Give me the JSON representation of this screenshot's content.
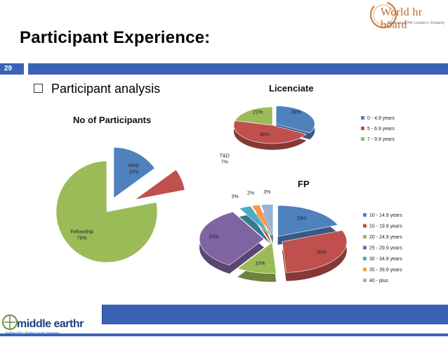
{
  "slide": {
    "title": "Participant Experience:",
    "page_number": "29",
    "bullet": "Participant analysis"
  },
  "logos": {
    "world_hr": "World hr board",
    "world_hr_tag": "Delivering HR Leaders Globally",
    "middle_earth": "middle earthr",
    "middle_earth_tag": "Building HRM - Building Human Happiness"
  },
  "colors": {
    "blue": "#4f81bd",
    "red": "#c0504d",
    "green": "#9bbb59",
    "purple": "#8064a2",
    "teal": "#4bacc6",
    "orange": "#f79646",
    "lightblue": "#95b3d7",
    "accent_bar": "#3a63b5"
  },
  "chart_data": [
    {
      "type": "pie",
      "title": "No of Participants",
      "slices": [
        {
          "label": "HRG",
          "value": 15,
          "text": "15%",
          "color": "#4f81bd"
        },
        {
          "label": "T&D",
          "value": 7,
          "text": "7%",
          "color": "#c0504d"
        },
        {
          "label": "Fellowship",
          "value": 78,
          "text": "78%",
          "color": "#9bbb59"
        }
      ]
    },
    {
      "type": "pie",
      "title": "Licenciate",
      "legend_position": "right",
      "slices": [
        {
          "label": "0 - 4.9 years",
          "value": 33,
          "text": "33%",
          "color": "#4f81bd"
        },
        {
          "label": "5 - 6.9 years",
          "value": 46,
          "text": "46%",
          "color": "#c0504d"
        },
        {
          "label": "7 - 9.9 years",
          "value": 21,
          "text": "21%",
          "color": "#9bbb59"
        }
      ]
    },
    {
      "type": "pie",
      "title": "FP",
      "legend_position": "right",
      "slices": [
        {
          "label": "10 - 14.9 years",
          "value": 19,
          "text": "19%",
          "color": "#4f81bd"
        },
        {
          "label": "15 -  19.9 years",
          "value": 30,
          "text": "30%",
          "color": "#c0504d"
        },
        {
          "label": "20 - 24.9 years",
          "value": 10,
          "text": "10%",
          "color": "#9bbb59"
        },
        {
          "label": "25 - 29.9 years",
          "value": 33,
          "text": "33%",
          "color": "#8064a2"
        },
        {
          "label": "30 - 34.9 years",
          "value": 3,
          "text": "3%",
          "color": "#4bacc6"
        },
        {
          "label": "35 - 39.9 years",
          "value": 2,
          "text": "2%",
          "color": "#f79646"
        },
        {
          "label": "40 - plus",
          "value": 3,
          "text": "3%",
          "color": "#95b3d7"
        }
      ]
    }
  ]
}
